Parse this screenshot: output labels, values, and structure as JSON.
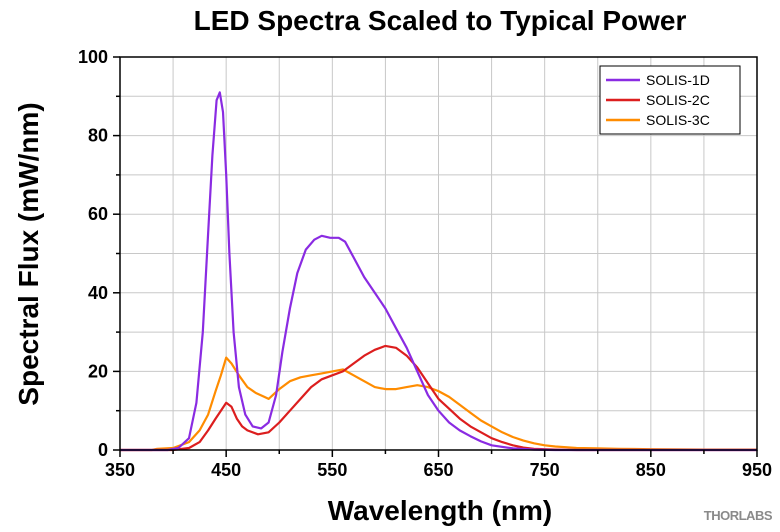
{
  "chart_data": {
    "type": "line",
    "title": "LED Spectra Scaled to Typical Power",
    "xlabel": "Wavelength (nm)",
    "ylabel": "Spectral Flux (mW/nm)",
    "xlim": [
      350,
      950
    ],
    "ylim": [
      0,
      100
    ],
    "xticks": [
      350,
      450,
      550,
      650,
      750,
      850,
      950
    ],
    "yticks": [
      0,
      20,
      40,
      60,
      80,
      100
    ],
    "grid": true,
    "legend_position": "top-right",
    "series": [
      {
        "name": "SOLIS-1D",
        "color": "#8a2be2",
        "points": [
          [
            350,
            0
          ],
          [
            395,
            0
          ],
          [
            405,
            0.5
          ],
          [
            415,
            3
          ],
          [
            422,
            12
          ],
          [
            428,
            30
          ],
          [
            433,
            55
          ],
          [
            437,
            75
          ],
          [
            441,
            89
          ],
          [
            444,
            91
          ],
          [
            447,
            86
          ],
          [
            450,
            70
          ],
          [
            453,
            50
          ],
          [
            457,
            30
          ],
          [
            462,
            16
          ],
          [
            468,
            9
          ],
          [
            475,
            6
          ],
          [
            483,
            5.5
          ],
          [
            490,
            7
          ],
          [
            497,
            14
          ],
          [
            503,
            25
          ],
          [
            510,
            36
          ],
          [
            517,
            45
          ],
          [
            525,
            51
          ],
          [
            533,
            53.5
          ],
          [
            540,
            54.5
          ],
          [
            548,
            54
          ],
          [
            556,
            54
          ],
          [
            562,
            53
          ],
          [
            570,
            49
          ],
          [
            580,
            44
          ],
          [
            590,
            40
          ],
          [
            600,
            36
          ],
          [
            610,
            31
          ],
          [
            620,
            26
          ],
          [
            630,
            20
          ],
          [
            640,
            14
          ],
          [
            650,
            10
          ],
          [
            660,
            7
          ],
          [
            670,
            5
          ],
          [
            680,
            3.5
          ],
          [
            690,
            2.2
          ],
          [
            700,
            1.2
          ],
          [
            720,
            0.4
          ],
          [
            740,
            0.1
          ],
          [
            760,
            0
          ],
          [
            950,
            0
          ]
        ]
      },
      {
        "name": "SOLIS-2C",
        "color": "#dc1e1e",
        "points": [
          [
            350,
            0
          ],
          [
            400,
            0
          ],
          [
            415,
            0.5
          ],
          [
            425,
            2
          ],
          [
            433,
            5
          ],
          [
            440,
            8
          ],
          [
            445,
            10
          ],
          [
            450,
            12
          ],
          [
            455,
            11
          ],
          [
            460,
            8
          ],
          [
            465,
            6
          ],
          [
            470,
            5
          ],
          [
            480,
            4
          ],
          [
            490,
            4.5
          ],
          [
            500,
            7
          ],
          [
            510,
            10
          ],
          [
            520,
            13
          ],
          [
            530,
            16
          ],
          [
            540,
            18
          ],
          [
            550,
            19
          ],
          [
            560,
            20
          ],
          [
            570,
            22
          ],
          [
            580,
            24
          ],
          [
            590,
            25.5
          ],
          [
            600,
            26.5
          ],
          [
            610,
            26
          ],
          [
            620,
            24
          ],
          [
            630,
            21
          ],
          [
            640,
            17
          ],
          [
            650,
            13
          ],
          [
            660,
            10.5
          ],
          [
            670,
            8
          ],
          [
            680,
            6
          ],
          [
            690,
            4.5
          ],
          [
            700,
            3
          ],
          [
            710,
            2
          ],
          [
            720,
            1.2
          ],
          [
            730,
            0.6
          ],
          [
            740,
            0.3
          ],
          [
            760,
            0.1
          ],
          [
            780,
            0
          ],
          [
            950,
            0
          ]
        ]
      },
      {
        "name": "SOLIS-3C",
        "color": "#ff8c00",
        "points": [
          [
            350,
            0
          ],
          [
            380,
            0
          ],
          [
            385,
            0.3
          ],
          [
            400,
            0.5
          ],
          [
            415,
            2
          ],
          [
            425,
            5
          ],
          [
            433,
            9
          ],
          [
            440,
            15
          ],
          [
            445,
            19
          ],
          [
            450,
            23.5
          ],
          [
            455,
            22
          ],
          [
            462,
            19
          ],
          [
            470,
            16
          ],
          [
            478,
            14.5
          ],
          [
            486,
            13.5
          ],
          [
            490,
            13
          ],
          [
            500,
            15.5
          ],
          [
            510,
            17.5
          ],
          [
            520,
            18.5
          ],
          [
            530,
            19
          ],
          [
            540,
            19.5
          ],
          [
            550,
            20
          ],
          [
            560,
            20.5
          ],
          [
            570,
            19
          ],
          [
            580,
            17.5
          ],
          [
            590,
            16
          ],
          [
            600,
            15.5
          ],
          [
            610,
            15.5
          ],
          [
            620,
            16
          ],
          [
            630,
            16.5
          ],
          [
            640,
            16
          ],
          [
            650,
            15
          ],
          [
            660,
            13.5
          ],
          [
            670,
            11.5
          ],
          [
            680,
            9.5
          ],
          [
            690,
            7.5
          ],
          [
            700,
            6
          ],
          [
            710,
            4.5
          ],
          [
            720,
            3.3
          ],
          [
            730,
            2.4
          ],
          [
            740,
            1.7
          ],
          [
            750,
            1.2
          ],
          [
            760,
            0.9
          ],
          [
            770,
            0.7
          ],
          [
            780,
            0.5
          ],
          [
            800,
            0.4
          ],
          [
            820,
            0.3
          ],
          [
            850,
            0.2
          ],
          [
            900,
            0.1
          ],
          [
            950,
            0.1
          ]
        ]
      }
    ]
  },
  "branding": {
    "logo_text": "THORLABS"
  }
}
